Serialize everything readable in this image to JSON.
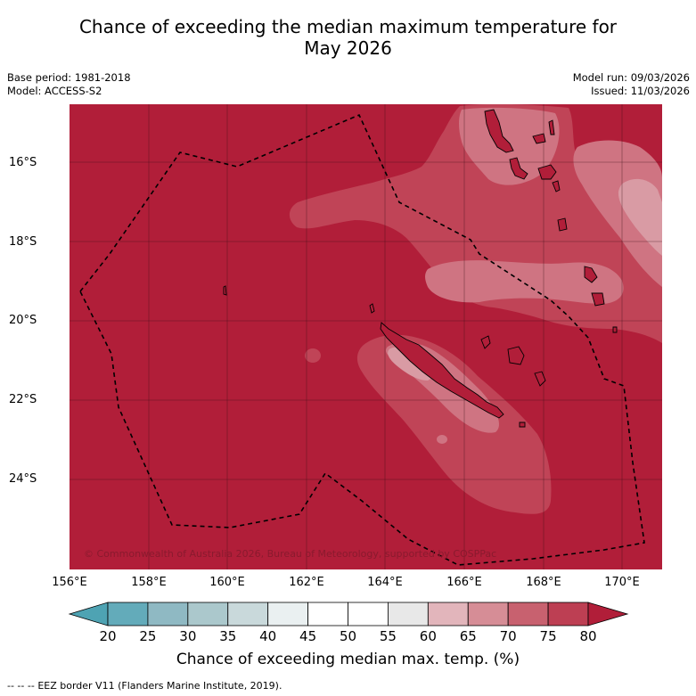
{
  "title": {
    "line1": "Chance of exceeding the median maximum temperature for",
    "line2": "May 2026"
  },
  "meta": {
    "base_period": "Base period: 1981-2018",
    "model": "Model: ACCESS-S2",
    "model_run": "Model run: 09/03/2026",
    "issued": "Issued: 11/03/2026"
  },
  "map": {
    "lat_labels": [
      "16°S",
      "18°S",
      "20°S",
      "22°S",
      "24°S"
    ],
    "lon_labels": [
      "156°E",
      "158°E",
      "160°E",
      "162°E",
      "164°E",
      "166°E",
      "168°E",
      "170°E"
    ],
    "copyright": "© Commonwealth of Australia 2026, Bureau of Meteorology, supported by COSPPac",
    "colors": {
      "above_80": "#b11e39",
      "75_80": "#c04457",
      "70_75": "#cf7482",
      "65_70": "#d99ba4"
    }
  },
  "colorbar": {
    "ticks": [
      "20",
      "25",
      "30",
      "35",
      "40",
      "45",
      "50",
      "55",
      "60",
      "65",
      "70",
      "75",
      "80"
    ],
    "colors": [
      "#63abba",
      "#8fb9c3",
      "#abc8cc",
      "#c9d9db",
      "#eaf0f1",
      "#ffffff",
      "#ffffff",
      "#e8e8e8",
      "#e2b5bb",
      "#d68d96",
      "#c8616f",
      "#bd3f53"
    ],
    "low_extend_color": "#4ea3b3",
    "high_extend_color": "#b11e39",
    "label": "Chance of exceeding median max. temp. (%)"
  },
  "footer": {
    "legend_symbol": "-- -- --",
    "eez_text": "EEZ border V11 (Flanders Marine Institute, 2019)."
  }
}
